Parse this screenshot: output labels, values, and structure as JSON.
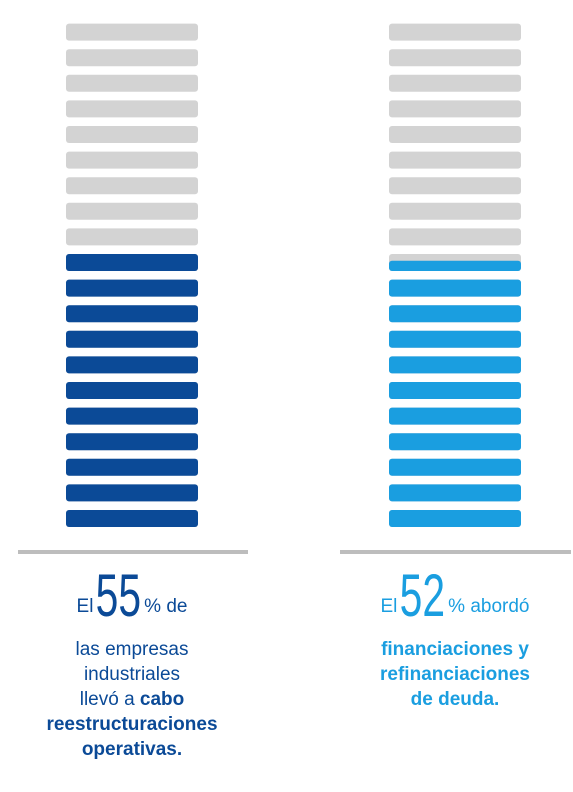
{
  "chart_data": {
    "type": "bar",
    "ylim": [
      0,
      100
    ],
    "segments": 20,
    "track_color": "#d3d3d3",
    "items": [
      {
        "value": 55,
        "color": "#0b4a97",
        "prefix": "El",
        "suffix": "% de",
        "body": [
          "las empresas",
          "industriales",
          "llevó a"
        ],
        "bold": [
          "cabo",
          "reestructuraciones",
          "operativas."
        ]
      },
      {
        "value": 52,
        "color": "#1a9ee0",
        "prefix": "El",
        "suffix": "% abordó",
        "body": [],
        "bold": [
          "financiaciones y",
          "refinanciaciones",
          "de deuda."
        ]
      }
    ]
  }
}
